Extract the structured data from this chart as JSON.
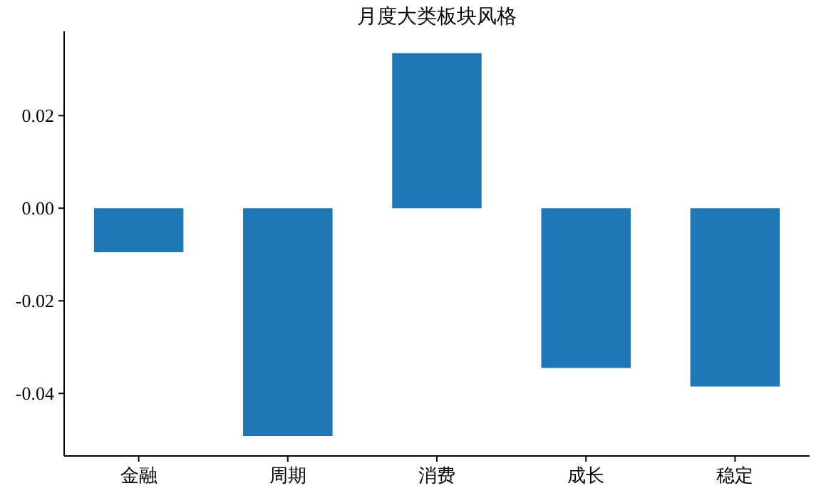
{
  "chart_data": {
    "type": "bar",
    "title": "月度大类板块风格",
    "categories": [
      "金融",
      "周期",
      "消费",
      "成长",
      "稳定"
    ],
    "values": [
      -0.0095,
      -0.0492,
      0.0335,
      -0.0345,
      -0.0385
    ],
    "color": "#1f77b4",
    "ylim": [
      -0.0535,
      0.0382
    ],
    "yticks": [
      {
        "value": -0.04,
        "label": "-0.04"
      },
      {
        "value": -0.02,
        "label": "-0.02"
      },
      {
        "value": 0,
        "label": "0.00"
      },
      {
        "value": 0.02,
        "label": "0.02"
      }
    ]
  }
}
